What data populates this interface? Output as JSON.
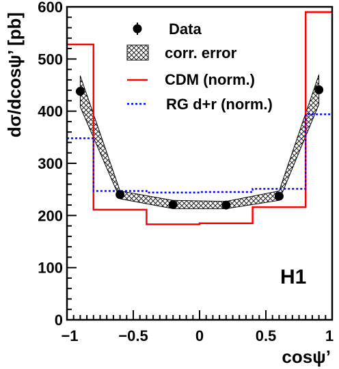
{
  "chart_data": {
    "type": "line",
    "xlabel": "cosψ’",
    "ylabel": "dσ/dcosψ’ [pb]",
    "xlim": [
      -1,
      1
    ],
    "ylim": [
      0,
      600
    ],
    "x_ticks": [
      -1,
      -0.5,
      0,
      0.5,
      1
    ],
    "x_tick_labels": [
      "−1",
      "−0.5",
      "0",
      "0.5",
      "1"
    ],
    "y_ticks": [
      0,
      100,
      200,
      300,
      400,
      500,
      600
    ],
    "y_tick_labels": [
      "0",
      "100",
      "200",
      "300",
      "400",
      "500",
      "600"
    ],
    "legend_position": "top-right",
    "experiment_label": "H1",
    "series": [
      {
        "name": "Data",
        "kind": "points",
        "color": "#000000",
        "x": [
          -0.9,
          -0.6,
          -0.2,
          0.2,
          0.6,
          0.9
        ],
        "y": [
          438,
          240,
          221,
          220,
          237,
          441
        ],
        "yerr": [
          7,
          4,
          4,
          4,
          4,
          7
        ]
      },
      {
        "name": "corr. error",
        "kind": "band",
        "color": "#000000",
        "x": [
          -0.9,
          -0.6,
          -0.2,
          0.2,
          0.6,
          0.9
        ],
        "low": [
          408,
          232,
          213,
          213,
          229,
          413
        ],
        "high": [
          468,
          247,
          229,
          227,
          247,
          470
        ]
      },
      {
        "name": "CDM (norm.)",
        "kind": "step",
        "color": "#ff0000",
        "edges": [
          -1,
          -0.8,
          -0.4,
          0,
          0.4,
          0.8,
          1
        ],
        "values": [
          528,
          211,
          183,
          185,
          216,
          590
        ]
      },
      {
        "name": "RG d+r (norm.)",
        "kind": "step",
        "color": "#0000ff",
        "edges": [
          -1,
          -0.8,
          -0.4,
          0,
          0.4,
          0.8,
          1
        ],
        "values": [
          348,
          247,
          244,
          245,
          251,
          394
        ]
      }
    ]
  }
}
